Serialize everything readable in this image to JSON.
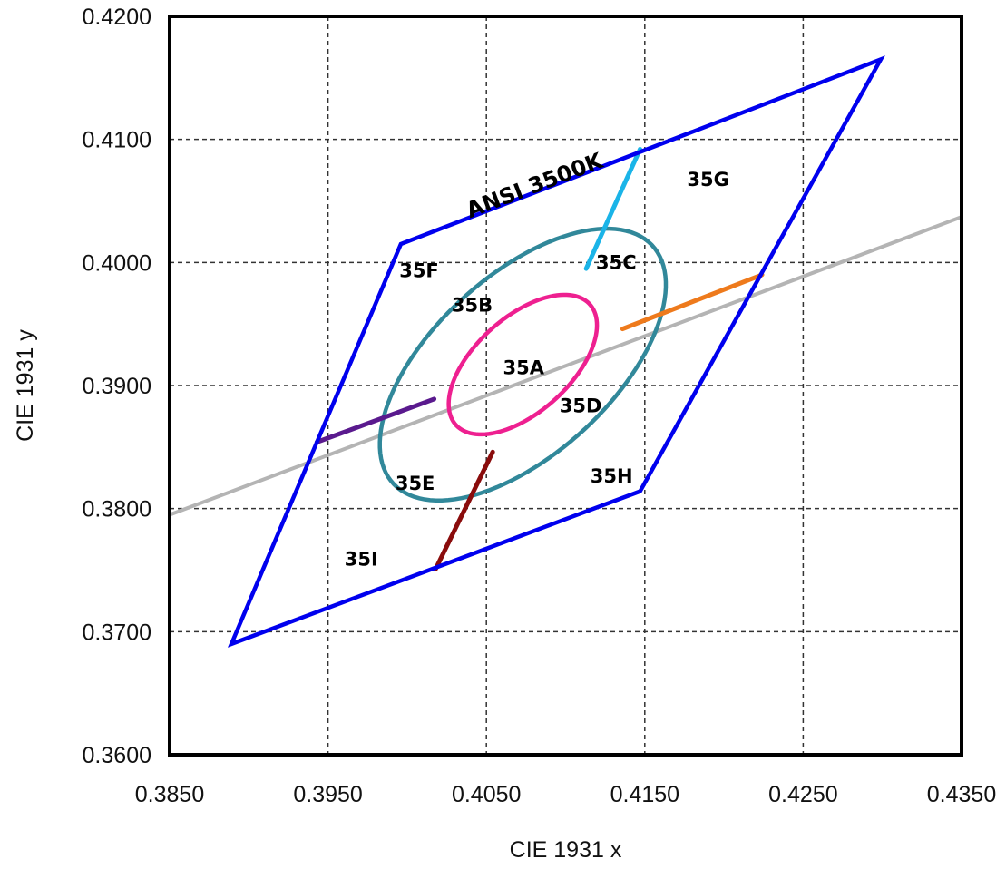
{
  "chart_data": {
    "type": "scatter",
    "title": "",
    "xlabel": "CIE 1931 x",
    "ylabel": "CIE 1931 y",
    "xlim": [
      0.385,
      0.435
    ],
    "ylim": [
      0.36,
      0.42
    ],
    "x_ticks": [
      0.385,
      0.395,
      0.405,
      0.415,
      0.425,
      0.435
    ],
    "y_ticks": [
      0.36,
      0.37,
      0.38,
      0.39,
      0.4,
      0.41,
      0.42
    ],
    "x_tick_labels": [
      "0.3850",
      "0.3950",
      "0.4050",
      "0.4150",
      "0.4250",
      "0.4350"
    ],
    "y_tick_labels": [
      "0.3600",
      "0.3700",
      "0.3800",
      "0.3900",
      "0.4000",
      "0.4100",
      "0.4200"
    ],
    "grid": true,
    "grid_style": "dashed",
    "quadrangle": {
      "label": "ANSI 3500K",
      "color": "#0000ee",
      "points": [
        [
          0.3889,
          0.369
        ],
        [
          0.3996,
          0.4015
        ],
        [
          0.4299,
          0.4165
        ],
        [
          0.4147,
          0.3814
        ]
      ]
    },
    "ellipses": [
      {
        "name": "inner",
        "color": "#ee2090",
        "center": [
          0.4073,
          0.3917
        ],
        "semi_axes": [
          0.00655,
          0.00335
        ],
        "rotation_deg": 54.5
      },
      {
        "name": "outer",
        "color": "#31889a",
        "center": [
          0.4073,
          0.3917
        ],
        "semi_axes": [
          0.0128,
          0.0063
        ],
        "rotation_deg": 54.5
      }
    ],
    "series": [
      {
        "name": "",
        "color": "#b4b4b4",
        "points": [
          [
            0.385,
            0.3795
          ],
          [
            0.435,
            0.4037
          ]
        ]
      },
      {
        "name": "",
        "color": "#ee7a1c",
        "points": [
          [
            0.4136,
            0.3946
          ],
          [
            0.4224,
            0.399
          ]
        ]
      },
      {
        "name": "",
        "color": "#5a1a8e",
        "points": [
          [
            0.3943,
            0.3854
          ],
          [
            0.4017,
            0.3889
          ]
        ]
      },
      {
        "name": "",
        "color": "#1ab4e8",
        "points": [
          [
            0.4113,
            0.3995
          ],
          [
            0.4147,
            0.4092
          ]
        ]
      },
      {
        "name": "",
        "color": "#8a0c0c",
        "points": [
          [
            0.4054,
            0.3846
          ],
          [
            0.4018,
            0.3751
          ]
        ]
      }
    ],
    "annotations": [
      {
        "text": "35A",
        "x": 0.40735,
        "y": 0.39135
      },
      {
        "text": "35B",
        "x": 0.4041,
        "y": 0.39645
      },
      {
        "text": "35C",
        "x": 0.4132,
        "y": 0.3999
      },
      {
        "text": "35D",
        "x": 0.41095,
        "y": 0.38825
      },
      {
        "text": "35E",
        "x": 0.4005,
        "y": 0.38195
      },
      {
        "text": "35F",
        "x": 0.40075,
        "y": 0.39925
      },
      {
        "text": "35G",
        "x": 0.419,
        "y": 0.40665
      },
      {
        "text": "35H",
        "x": 0.4129,
        "y": 0.38255
      },
      {
        "text": "35I",
        "x": 0.3971,
        "y": 0.3758
      }
    ]
  }
}
